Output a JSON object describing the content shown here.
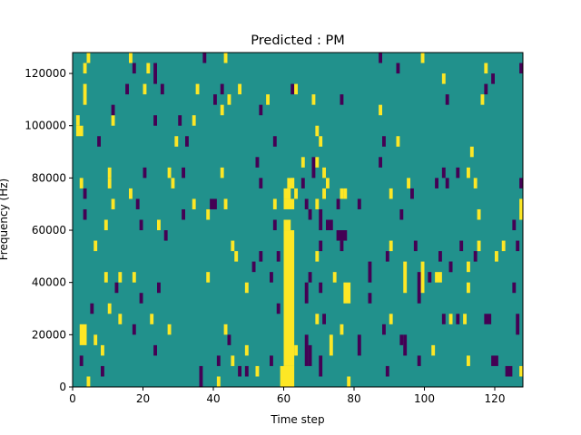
{
  "chart_data": {
    "type": "heatmap",
    "title": "Predicted : PM",
    "xlabel": "Time step",
    "ylabel": "Frequency (Hz)",
    "xlim": [
      0,
      128
    ],
    "ylim": [
      0,
      128000
    ],
    "row_height_hz": 4000,
    "xticks": [
      0,
      20,
      40,
      60,
      80,
      100,
      120
    ],
    "yticks": [
      0,
      20000,
      40000,
      60000,
      80000,
      100000,
      120000
    ],
    "xtick_labels": [
      "0",
      "20",
      "40",
      "60",
      "80",
      "100",
      "120"
    ],
    "ytick_labels": [
      "0",
      "20000",
      "40000",
      "60000",
      "80000",
      "100000",
      "120000"
    ],
    "colors": {
      "background": "#21918c",
      "high": "#fde725",
      "low": "#440154"
    },
    "cell_format": "[time_start, freq_row_start, time_width, row_count, value(1=high,-1=low)]",
    "cells": [
      [
        59,
        0,
        4,
        2,
        1
      ],
      [
        60,
        2,
        3,
        13,
        1
      ],
      [
        60,
        15,
        2,
        1,
        1
      ],
      [
        60,
        17,
        3,
        1,
        1
      ],
      [
        61,
        19,
        2,
        1,
        1
      ],
      [
        60,
        18,
        2,
        1,
        1
      ],
      [
        63,
        18,
        1,
        1,
        1
      ],
      [
        36,
        0,
        1,
        2,
        -1
      ],
      [
        4,
        0,
        1,
        1,
        1
      ],
      [
        41,
        0,
        1,
        1,
        1
      ],
      [
        78,
        0,
        1,
        1,
        1
      ],
      [
        8,
        1,
        1,
        1,
        -1
      ],
      [
        52,
        1,
        1,
        1,
        1
      ],
      [
        47,
        1,
        1,
        1,
        -1
      ],
      [
        49,
        1,
        1,
        1,
        -1
      ],
      [
        70,
        1,
        1,
        2,
        -1
      ],
      [
        89,
        1,
        1,
        1,
        -1
      ],
      [
        123,
        1,
        2,
        1,
        -1
      ],
      [
        127,
        1,
        1,
        1,
        1
      ],
      [
        2,
        2,
        1,
        1,
        -1
      ],
      [
        41,
        2,
        1,
        1,
        -1
      ],
      [
        45,
        2,
        1,
        1,
        1
      ],
      [
        56,
        2,
        1,
        1,
        -1
      ],
      [
        66,
        2,
        1,
        3,
        -1
      ],
      [
        67,
        2,
        1,
        2,
        -1
      ],
      [
        98,
        2,
        1,
        1,
        -1
      ],
      [
        112,
        2,
        1,
        1,
        1
      ],
      [
        119,
        2,
        2,
        1,
        -1
      ],
      [
        8,
        3,
        1,
        1,
        1
      ],
      [
        23,
        3,
        1,
        1,
        -1
      ],
      [
        49,
        3,
        1,
        1,
        1
      ],
      [
        63,
        3,
        1,
        1,
        1
      ],
      [
        73,
        3,
        1,
        2,
        1
      ],
      [
        81,
        3,
        1,
        2,
        -1
      ],
      [
        94,
        3,
        1,
        2,
        -1
      ],
      [
        102,
        3,
        1,
        1,
        1
      ],
      [
        2,
        4,
        2,
        2,
        1
      ],
      [
        44,
        4,
        1,
        1,
        -1
      ],
      [
        43,
        5,
        1,
        1,
        1
      ],
      [
        6,
        4,
        1,
        1,
        1
      ],
      [
        93,
        4,
        1,
        1,
        -1
      ],
      [
        76,
        5,
        1,
        1,
        1
      ],
      [
        88,
        5,
        1,
        1,
        -1
      ],
      [
        27,
        5,
        1,
        1,
        1
      ],
      [
        17,
        5,
        1,
        1,
        -1
      ],
      [
        71,
        6,
        1,
        1,
        -1
      ],
      [
        69,
        6,
        1,
        1,
        1
      ],
      [
        90,
        6,
        1,
        1,
        1
      ],
      [
        105,
        6,
        1,
        1,
        -1
      ],
      [
        107,
        6,
        1,
        1,
        1
      ],
      [
        109,
        6,
        1,
        1,
        -1
      ],
      [
        111,
        6,
        1,
        1,
        1
      ],
      [
        117,
        6,
        2,
        1,
        -1
      ],
      [
        126,
        5,
        1,
        2,
        -1
      ],
      [
        13,
        6,
        1,
        1,
        1
      ],
      [
        22,
        6,
        1,
        1,
        1
      ],
      [
        58,
        7,
        1,
        1,
        -1
      ],
      [
        5,
        7,
        1,
        1,
        -1
      ],
      [
        19,
        8,
        1,
        1,
        -1
      ],
      [
        77,
        8,
        2,
        2,
        1
      ],
      [
        84,
        8,
        1,
        1,
        -1
      ],
      [
        98,
        8,
        1,
        3,
        -1
      ],
      [
        94,
        9,
        1,
        3,
        1
      ],
      [
        10,
        7,
        1,
        1,
        1
      ],
      [
        66,
        8,
        1,
        2,
        -1
      ],
      [
        70,
        9,
        1,
        1,
        -1
      ],
      [
        12,
        9,
        1,
        1,
        -1
      ],
      [
        24,
        9,
        1,
        1,
        -1
      ],
      [
        49,
        9,
        1,
        1,
        1
      ],
      [
        99,
        9,
        1,
        3,
        1
      ],
      [
        112,
        9,
        1,
        1,
        1
      ],
      [
        125,
        9,
        1,
        1,
        -1
      ],
      [
        9,
        10,
        1,
        1,
        1
      ],
      [
        13,
        10,
        1,
        1,
        1
      ],
      [
        17,
        10,
        1,
        1,
        1
      ],
      [
        38,
        10,
        1,
        1,
        1
      ],
      [
        56,
        10,
        1,
        1,
        -1
      ],
      [
        67,
        10,
        1,
        1,
        -1
      ],
      [
        84,
        10,
        1,
        2,
        -1
      ],
      [
        101,
        10,
        1,
        1,
        -1
      ],
      [
        103,
        10,
        2,
        1,
        1
      ],
      [
        112,
        11,
        1,
        1,
        1
      ],
      [
        51,
        11,
        1,
        1,
        -1
      ],
      [
        74,
        10,
        1,
        1,
        1
      ],
      [
        107,
        11,
        1,
        1,
        -1
      ],
      [
        114,
        12,
        1,
        1,
        -1
      ],
      [
        104,
        12,
        1,
        1,
        -1
      ],
      [
        46,
        12,
        1,
        1,
        1
      ],
      [
        58,
        12,
        1,
        1,
        -1
      ],
      [
        69,
        12,
        1,
        1,
        1
      ],
      [
        89,
        12,
        1,
        1,
        -1
      ],
      [
        107,
        11,
        1,
        1,
        -1
      ],
      [
        120,
        12,
        1,
        1,
        1
      ],
      [
        6,
        13,
        1,
        1,
        1
      ],
      [
        45,
        13,
        1,
        1,
        1
      ],
      [
        53,
        12,
        1,
        1,
        -1
      ],
      [
        70,
        13,
        1,
        1,
        -1
      ],
      [
        76,
        13,
        1,
        1,
        -1
      ],
      [
        90,
        13,
        1,
        1,
        1
      ],
      [
        97,
        13,
        1,
        1,
        -1
      ],
      [
        115,
        13,
        1,
        1,
        1
      ],
      [
        122,
        13,
        1,
        1,
        1
      ],
      [
        126,
        13,
        1,
        1,
        -1
      ],
      [
        26,
        14,
        1,
        1,
        -1
      ],
      [
        75,
        14,
        3,
        1,
        -1
      ],
      [
        110,
        13,
        1,
        1,
        -1
      ],
      [
        9,
        15,
        1,
        1,
        1
      ],
      [
        19,
        15,
        1,
        1,
        -1
      ],
      [
        24,
        15,
        1,
        1,
        1
      ],
      [
        57,
        15,
        1,
        1,
        -1
      ],
      [
        70,
        15,
        1,
        2,
        -1
      ],
      [
        72,
        15,
        2,
        1,
        -1
      ],
      [
        125,
        15,
        1,
        1,
        -1
      ],
      [
        3,
        16,
        1,
        1,
        -1
      ],
      [
        31,
        16,
        1,
        1,
        -1
      ],
      [
        38,
        16,
        1,
        1,
        1
      ],
      [
        67,
        16,
        1,
        1,
        -1
      ],
      [
        93,
        16,
        1,
        1,
        -1
      ],
      [
        115,
        16,
        1,
        1,
        1
      ],
      [
        127,
        16,
        1,
        2,
        1
      ],
      [
        11,
        17,
        1,
        1,
        1
      ],
      [
        18,
        17,
        1,
        1,
        -1
      ],
      [
        34,
        17,
        1,
        1,
        1
      ],
      [
        39,
        17,
        2,
        1,
        -1
      ],
      [
        43,
        17,
        1,
        1,
        1
      ],
      [
        57,
        17,
        1,
        1,
        1
      ],
      [
        66,
        17,
        1,
        1,
        -1
      ],
      [
        69,
        17,
        1,
        1,
        1
      ],
      [
        75,
        17,
        1,
        1,
        -1
      ],
      [
        81,
        17,
        1,
        1,
        -1
      ],
      [
        3,
        18,
        1,
        1,
        -1
      ],
      [
        16,
        18,
        1,
        1,
        1
      ],
      [
        62,
        19,
        1,
        1,
        1
      ],
      [
        77,
        18,
        1,
        1,
        1
      ],
      [
        90,
        18,
        1,
        1,
        1
      ],
      [
        96,
        18,
        1,
        1,
        -1
      ],
      [
        71,
        18,
        1,
        1,
        1
      ],
      [
        76,
        18,
        1,
        1,
        1
      ],
      [
        2,
        19,
        1,
        1,
        1
      ],
      [
        10,
        19,
        1,
        1,
        1
      ],
      [
        28,
        19,
        1,
        1,
        1
      ],
      [
        53,
        19,
        1,
        1,
        -1
      ],
      [
        65,
        19,
        1,
        1,
        -1
      ],
      [
        72,
        19,
        1,
        1,
        1
      ],
      [
        95,
        19,
        1,
        1,
        1
      ],
      [
        103,
        19,
        1,
        1,
        -1
      ],
      [
        106,
        19,
        1,
        1,
        -1
      ],
      [
        114,
        19,
        1,
        1,
        1
      ],
      [
        127,
        19,
        1,
        1,
        -1
      ],
      [
        10,
        20,
        1,
        1,
        1
      ],
      [
        20,
        20,
        1,
        1,
        -1
      ],
      [
        27,
        20,
        1,
        1,
        1
      ],
      [
        31,
        20,
        1,
        1,
        -1
      ],
      [
        42,
        20,
        1,
        1,
        1
      ],
      [
        68,
        20,
        1,
        2,
        -1
      ],
      [
        71,
        20,
        1,
        1,
        1
      ],
      [
        105,
        20,
        1,
        1,
        -1
      ],
      [
        109,
        20,
        1,
        1,
        -1
      ],
      [
        112,
        20,
        1,
        1,
        1
      ],
      [
        52,
        21,
        1,
        1,
        -1
      ],
      [
        65,
        21,
        1,
        1,
        1
      ],
      [
        69,
        21,
        1,
        1,
        1
      ],
      [
        87,
        21,
        1,
        1,
        -1
      ],
      [
        113,
        22,
        1,
        1,
        1
      ],
      [
        7,
        23,
        1,
        1,
        -1
      ],
      [
        29,
        23,
        1,
        1,
        1
      ],
      [
        32,
        23,
        1,
        1,
        -1
      ],
      [
        57,
        23,
        1,
        1,
        -1
      ],
      [
        70,
        23,
        1,
        1,
        1
      ],
      [
        88,
        23,
        1,
        1,
        -1
      ],
      [
        92,
        23,
        1,
        1,
        1
      ],
      [
        1,
        24,
        2,
        1,
        1
      ],
      [
        34,
        25,
        1,
        1,
        1
      ],
      [
        69,
        24,
        1,
        1,
        1
      ],
      [
        11,
        25,
        1,
        1,
        1
      ],
      [
        23,
        25,
        1,
        1,
        -1
      ],
      [
        42,
        26,
        1,
        1,
        1
      ],
      [
        53,
        26,
        1,
        1,
        -1
      ],
      [
        87,
        26,
        1,
        1,
        1
      ],
      [
        1,
        25,
        1,
        1,
        1
      ],
      [
        11,
        26,
        1,
        1,
        -1
      ],
      [
        30,
        25,
        1,
        1,
        -1
      ],
      [
        40,
        27,
        1,
        1,
        -1
      ],
      [
        44,
        27,
        1,
        1,
        1
      ],
      [
        55,
        27,
        1,
        1,
        1
      ],
      [
        68,
        27,
        1,
        1,
        1
      ],
      [
        76,
        27,
        1,
        1,
        -1
      ],
      [
        106,
        27,
        1,
        1,
        -1
      ],
      [
        116,
        27,
        1,
        1,
        1
      ],
      [
        3,
        27,
        1,
        2,
        1
      ],
      [
        15,
        28,
        1,
        1,
        -1
      ],
      [
        20,
        28,
        1,
        1,
        1
      ],
      [
        25,
        28,
        1,
        1,
        -1
      ],
      [
        35,
        28,
        1,
        1,
        1
      ],
      [
        42,
        28,
        1,
        1,
        -1
      ],
      [
        47,
        28,
        1,
        1,
        1
      ],
      [
        62,
        28,
        1,
        1,
        -1
      ],
      [
        63,
        28,
        1,
        1,
        1
      ],
      [
        117,
        28,
        1,
        1,
        -1
      ],
      [
        23,
        29,
        1,
        2,
        -1
      ],
      [
        105,
        29,
        1,
        1,
        1
      ],
      [
        119,
        29,
        1,
        1,
        -1
      ],
      [
        3,
        30,
        1,
        1,
        1
      ],
      [
        17,
        30,
        1,
        1,
        -1
      ],
      [
        21,
        30,
        1,
        1,
        1
      ],
      [
        92,
        30,
        1,
        1,
        -1
      ],
      [
        117,
        30,
        1,
        1,
        1
      ],
      [
        127,
        30,
        1,
        1,
        -1
      ],
      [
        4,
        31,
        1,
        1,
        1
      ],
      [
        16,
        31,
        1,
        1,
        1
      ],
      [
        37,
        31,
        1,
        1,
        -1
      ],
      [
        43,
        31,
        1,
        1,
        1
      ],
      [
        87,
        31,
        1,
        1,
        -1
      ],
      [
        99,
        31,
        1,
        1,
        1
      ]
    ]
  }
}
